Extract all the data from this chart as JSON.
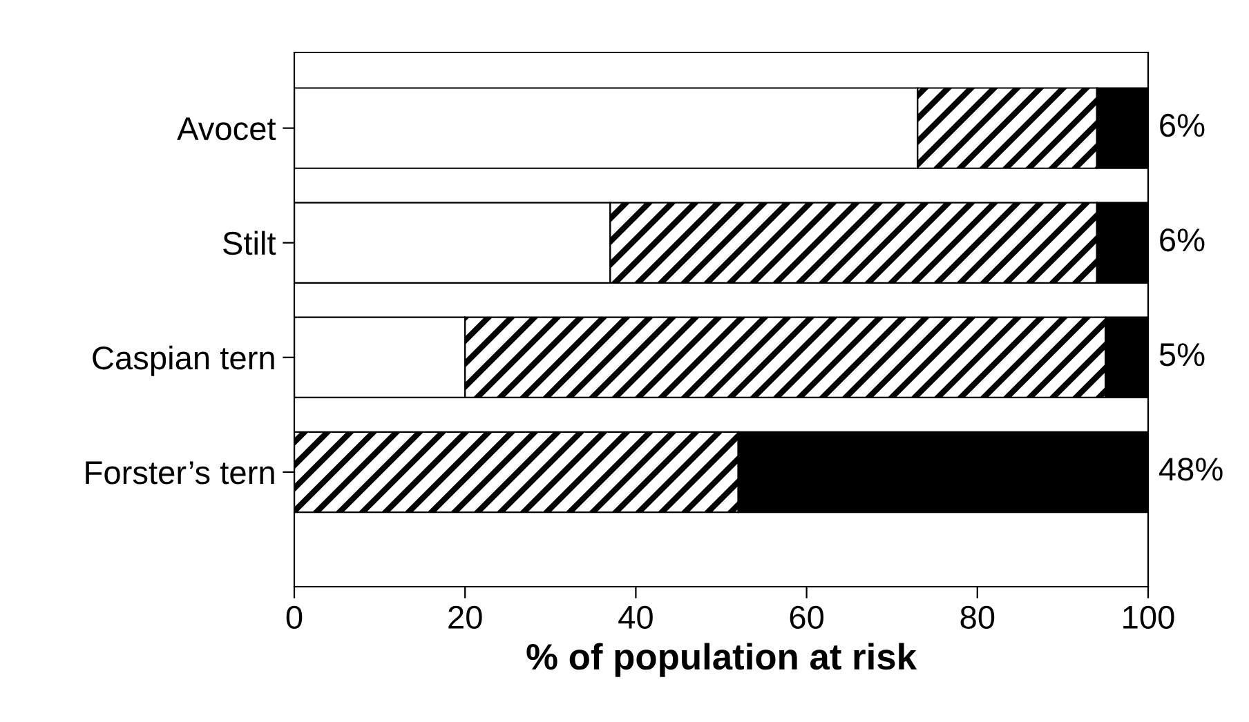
{
  "chart_data": {
    "type": "bar",
    "orientation": "horizontal",
    "stacked": true,
    "xlabel": "% of population at risk",
    "categories": [
      "Avocet",
      "Stilt",
      "Caspian tern",
      "Forster’s tern"
    ],
    "series": [
      {
        "color": "#ffffff",
        "values": [
          73,
          37,
          20,
          0
        ]
      },
      {
        "color": "#000000",
        "values": [
          21,
          57,
          75,
          52
        ]
      },
      {
        "color": "#000000",
        "values": [
          6,
          6,
          5,
          48
        ],
        "value_labels": [
          "6%",
          "6%",
          "5%",
          "48%"
        ]
      }
    ],
    "xlim": [
      0,
      100
    ],
    "xticks": [
      0,
      20,
      40,
      60,
      80,
      100
    ],
    "grid": false,
    "legend": false
  }
}
